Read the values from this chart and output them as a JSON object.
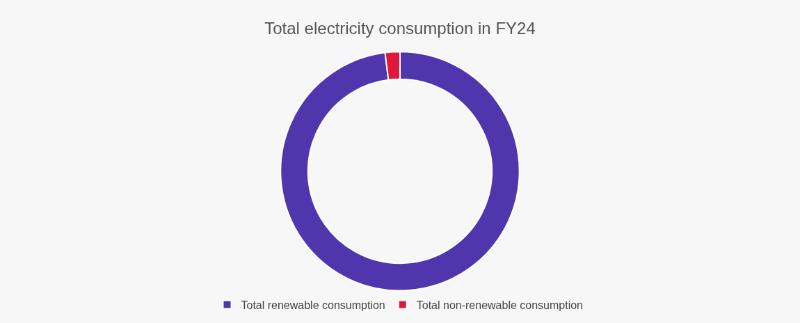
{
  "chart_data": {
    "type": "donut",
    "title": "Total electricity consumption in FY24",
    "categories": [
      "Total renewable consumption",
      "Total non-renewable consumption"
    ],
    "values": [
      98,
      2
    ],
    "colors": [
      "#5036ac",
      "#e0193a"
    ],
    "legend": "bottom"
  }
}
